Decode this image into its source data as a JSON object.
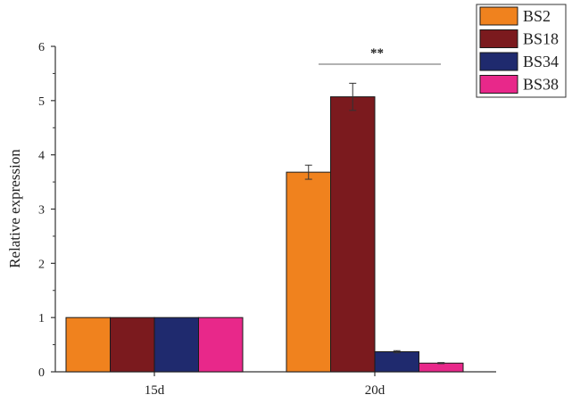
{
  "chart_data": {
    "type": "bar",
    "title": "",
    "xlabel": "",
    "ylabel": "Relative expression",
    "categories": [
      "15d",
      "20d"
    ],
    "ylim": [
      0,
      6
    ],
    "yticks": [
      0,
      1,
      2,
      3,
      4,
      5,
      6
    ],
    "grid": false,
    "legend_position": "top-right",
    "series": [
      {
        "name": "BS2",
        "color": "#F0821E",
        "values": [
          1.0,
          3.68
        ],
        "errors": [
          0,
          0.13
        ]
      },
      {
        "name": "BS18",
        "color": "#7B1A1E",
        "values": [
          1.0,
          5.07
        ],
        "errors": [
          0,
          0.25
        ]
      },
      {
        "name": "BS34",
        "color": "#1F2A6E",
        "values": [
          1.0,
          0.37
        ],
        "errors": [
          0,
          0.02
        ]
      },
      {
        "name": "BS38",
        "color": "#E8288A",
        "values": [
          1.0,
          0.16
        ],
        "errors": [
          0,
          0.01
        ]
      }
    ],
    "annotations": [
      {
        "text": "**",
        "category": "20d",
        "span": "all-series"
      }
    ]
  }
}
